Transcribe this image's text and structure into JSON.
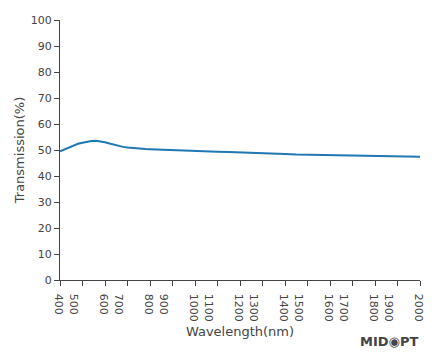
{
  "chart_data": {
    "type": "line",
    "x": [
      400,
      420,
      440,
      460,
      480,
      500,
      520,
      540,
      560,
      580,
      600,
      620,
      640,
      660,
      680,
      700,
      720,
      740,
      760,
      780,
      800,
      850,
      900,
      950,
      1000,
      1050,
      1100,
      1150,
      1200,
      1250,
      1300,
      1350,
      1400,
      1450,
      1500,
      1550,
      1600,
      1650,
      1700,
      1750,
      1800,
      1850,
      1900,
      1950,
      2000
    ],
    "values": [
      49.5,
      50.2,
      51.0,
      51.8,
      52.4,
      52.8,
      53.2,
      53.5,
      53.6,
      53.4,
      53.0,
      52.5,
      52.0,
      51.5,
      51.2,
      51.0,
      50.8,
      50.6,
      50.5,
      50.4,
      50.3,
      50.1,
      50.0,
      49.8,
      49.6,
      49.4,
      49.3,
      49.2,
      49.1,
      49.0,
      48.9,
      48.8,
      48.5,
      48.3,
      48.2,
      48.1,
      48.0,
      47.9,
      47.8,
      47.7,
      47.7,
      47.6,
      47.5,
      47.5,
      47.4
    ],
    "xlabel": "Wavelength(nm)",
    "ylabel": "Transmission(%)",
    "xlim": [
      400,
      2000
    ],
    "ylim": [
      0,
      100
    ],
    "xticks": [
      400,
      500,
      600,
      700,
      800,
      900,
      1000,
      1100,
      1200,
      1300,
      1400,
      1500,
      1600,
      1700,
      1800,
      1900,
      2000
    ],
    "yticks": [
      0,
      10,
      20,
      30,
      40,
      50,
      60,
      70,
      80,
      90,
      100
    ],
    "grid": false,
    "annotations": [
      "MID",
      "◉",
      "PT"
    ]
  }
}
